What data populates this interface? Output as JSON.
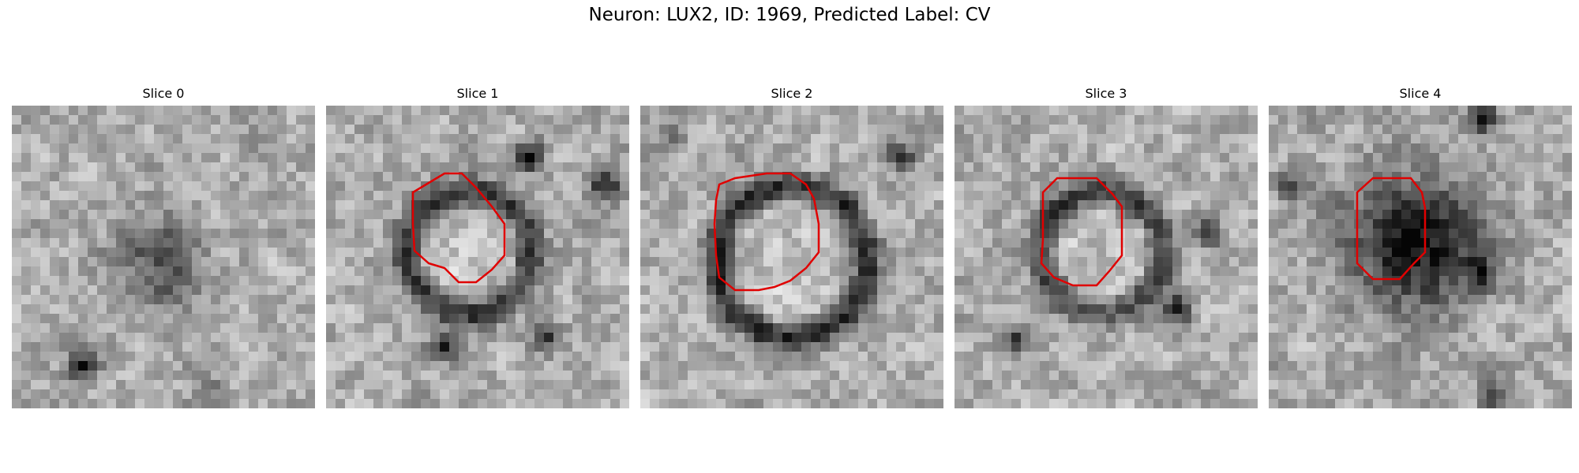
{
  "figure": {
    "title": "Neuron: LUX2, ID: 1969, Predicted Label: CV",
    "contour_color": "#e00000",
    "colormap": "gray",
    "grid_size": 32
  },
  "slices": [
    {
      "label": "Slice 0",
      "has_contour": false
    },
    {
      "label": "Slice 1",
      "has_contour": true
    },
    {
      "label": "Slice 2",
      "has_contour": true
    },
    {
      "label": "Slice 3",
      "has_contour": true
    },
    {
      "label": "Slice 4",
      "has_contour": true
    }
  ]
}
